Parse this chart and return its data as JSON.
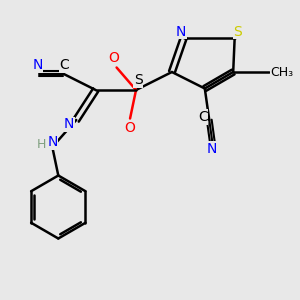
{
  "bg_color": "#e8e8e8",
  "colors": {
    "N": "#0000ff",
    "S": "#cccc00",
    "O": "#ff0000",
    "C": "#000000",
    "H": "#7f9f7f"
  },
  "lw": 1.8,
  "fs": 10
}
